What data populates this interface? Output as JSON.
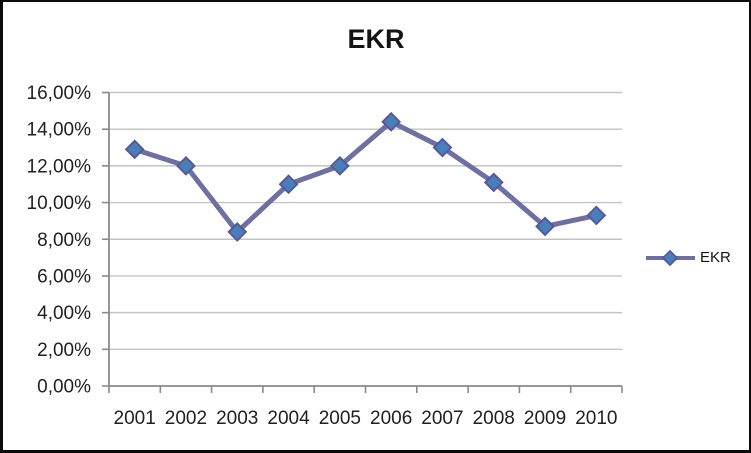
{
  "chart_data": {
    "type": "line",
    "title": "EKR",
    "categories": [
      "2001",
      "2002",
      "2003",
      "2004",
      "2005",
      "2006",
      "2007",
      "2008",
      "2009",
      "2010"
    ],
    "series": [
      {
        "name": "EKR",
        "values": [
          12.9,
          12.0,
          8.4,
          11.0,
          12.0,
          14.4,
          13.0,
          11.1,
          8.7,
          9.3
        ]
      }
    ],
    "value_format": "0,00%",
    "ylim": [
      0,
      16
    ],
    "y_tick_step": 2,
    "y_tick_labels": [
      "0,00%",
      "2,00%",
      "4,00%",
      "6,00%",
      "8,00%",
      "10,00%",
      "12,00%",
      "14,00%",
      "16,00%"
    ],
    "xlabel": "",
    "ylabel": "",
    "grid": "horizontal",
    "legend_position": "right",
    "colors": {
      "line": "#6E70A3",
      "marker_fill": "#4A7EBB",
      "marker_stroke": "#545A99",
      "gridline": "#C3C3C3",
      "axis": "#8A8A8A",
      "text": "#1F1F1F",
      "title_text": "#141414"
    }
  }
}
